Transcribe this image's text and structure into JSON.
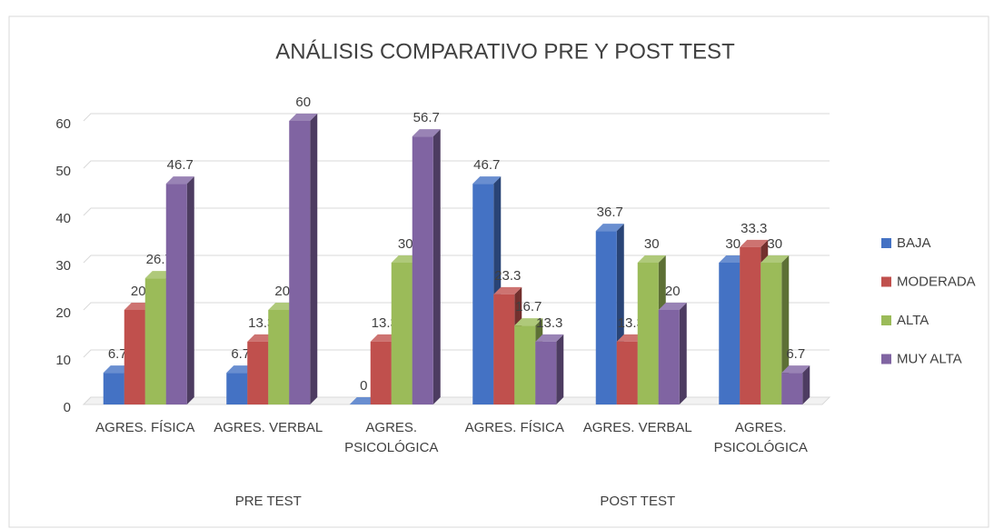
{
  "chart_data": {
    "type": "bar3d",
    "title": "ANÁLISIS COMPARATIVO PRE Y POST TEST",
    "categories": [
      "AGRES. FÍSICA",
      "AGRES. VERBAL",
      "AGRES. PSICOLÓGICA",
      "AGRES. FÍSICA",
      "AGRES. VERBAL",
      "AGRES. PSICOLÓGICA"
    ],
    "groups": [
      "PRE TEST",
      "POST TEST"
    ],
    "series": [
      {
        "name": "BAJA",
        "color": "#4472c4",
        "values": [
          6.7,
          6.7,
          0,
          46.7,
          36.7,
          30
        ]
      },
      {
        "name": "MODERADA",
        "color": "#c0504d",
        "values": [
          20,
          13.3,
          13.3,
          23.3,
          13.3,
          33.3
        ]
      },
      {
        "name": "ALTA",
        "color": "#9bbb59",
        "values": [
          26.7,
          20,
          30,
          16.7,
          30,
          30
        ]
      },
      {
        "name": "MUY ALTA",
        "color": "#8064a2",
        "values": [
          46.7,
          60,
          56.7,
          13.3,
          20,
          6.7
        ]
      }
    ],
    "ylim": [
      0,
      60
    ],
    "yticks": [
      0,
      10,
      20,
      30,
      40,
      50,
      60
    ],
    "grid": true,
    "legend": "right"
  }
}
